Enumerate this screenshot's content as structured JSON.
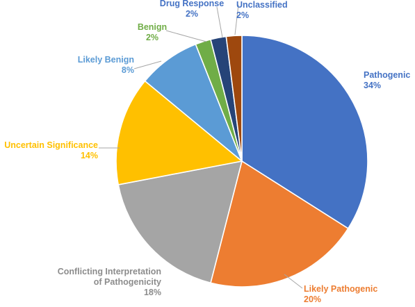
{
  "chart_data": {
    "type": "pie",
    "title": "",
    "start_angle_deg": 0,
    "direction": "clockwise",
    "slices": [
      {
        "label": "Pathogenic",
        "value": 34,
        "pct_label": "34%",
        "color": "#4472C4",
        "label_color": "#4472C4"
      },
      {
        "label": "Likely Pathogenic",
        "value": 20,
        "pct_label": "20%",
        "color": "#ED7D31",
        "label_color": "#ED7D31"
      },
      {
        "label": "Conflicting Interpretation of Pathogenicity",
        "label_lines": [
          "Conflicting Interpretation",
          "of Pathogenicity"
        ],
        "value": 18,
        "pct_label": "18%",
        "color": "#A5A5A5",
        "label_color": "#8C8C8C"
      },
      {
        "label": "Uncertain Significance",
        "value": 14,
        "pct_label": "14%",
        "color": "#FFC000",
        "label_color": "#FFC000"
      },
      {
        "label": "Likely Benign",
        "value": 8,
        "pct_label": "8%",
        "color": "#5B9BD5",
        "label_color": "#5B9BD5"
      },
      {
        "label": "Benign",
        "value": 2,
        "pct_label": "2%",
        "color": "#70AD47",
        "label_color": "#70AD47"
      },
      {
        "label": "Drug Response",
        "value": 2,
        "pct_label": "2%",
        "color": "#264478",
        "label_color": "#4472C4"
      },
      {
        "label": "Unclassified",
        "value": 2,
        "pct_label": "2%",
        "color": "#9E480E",
        "label_color": "#4472C4"
      }
    ]
  }
}
